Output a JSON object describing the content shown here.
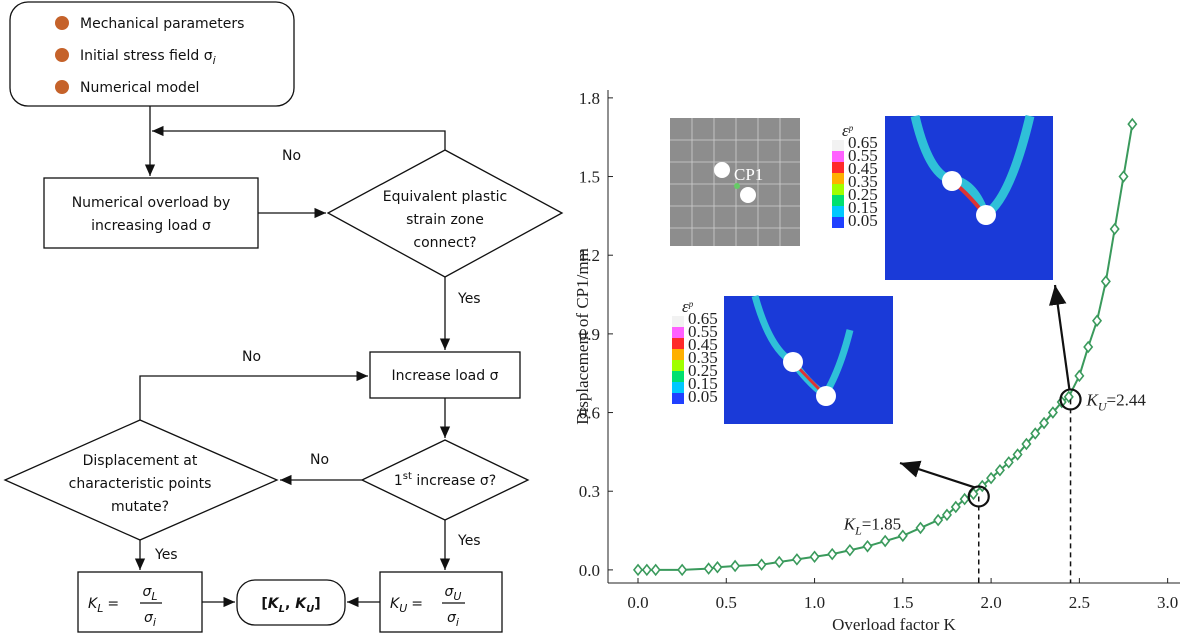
{
  "flowchart": {
    "inputs": [
      "Mechanical parameters",
      "Initial stress field σ",
      "Numerical model"
    ],
    "input_sub": "i",
    "overload": [
      "Numerical overload by",
      "increasing load σ"
    ],
    "connect": [
      "Equivalent plastic",
      "strain zone",
      "connect?"
    ],
    "increase": "Increase load σ",
    "first": {
      "pre": "1",
      "sup": "st",
      "post": " increase σ?"
    },
    "mutate": [
      "Displacement at",
      "characteristic points",
      "mutate?"
    ],
    "no_1": "No",
    "yes_1": "Yes",
    "no_2": "No",
    "no_3": "No",
    "yes_2": "Yes",
    "yes_3": "Yes",
    "kl": {
      "lhs": "K",
      "lhs_sub": "L",
      "eq": "=",
      "num": "σ",
      "num_sub": "L",
      "den": "σ",
      "den_sub": "i"
    },
    "ku": {
      "lhs": "K",
      "lhs_sub": "U",
      "eq": "=",
      "num": "σ",
      "num_sub": "U",
      "den": "σ",
      "den_sub": "i"
    },
    "result": {
      "open": "[",
      "k1": "K",
      "k1_sub": "L",
      "sep": ", ",
      "k2": "K",
      "k2_sub": "U",
      "close": "]"
    }
  },
  "chart_data": {
    "type": "line",
    "x_label": "Overload factor K",
    "y_label": "Displacement of CP1/mm",
    "color": "#3a9a5c",
    "x": [
      0,
      0.05,
      0.1,
      0.25,
      0.4,
      0.45,
      0.55,
      0.7,
      0.8,
      0.9,
      1.0,
      1.1,
      1.2,
      1.3,
      1.4,
      1.5,
      1.6,
      1.7,
      1.75,
      1.8,
      1.85,
      1.9,
      1.95,
      2.0,
      2.05,
      2.1,
      2.15,
      2.2,
      2.25,
      2.3,
      2.35,
      2.4,
      2.44,
      2.5,
      2.55,
      2.6,
      2.65,
      2.7,
      2.75,
      2.8
    ],
    "values": [
      0,
      0,
      0,
      0,
      0.005,
      0.01,
      0.015,
      0.02,
      0.03,
      0.04,
      0.05,
      0.06,
      0.075,
      0.09,
      0.11,
      0.13,
      0.16,
      0.19,
      0.21,
      0.24,
      0.27,
      0.29,
      0.32,
      0.35,
      0.38,
      0.41,
      0.44,
      0.48,
      0.52,
      0.56,
      0.6,
      0.64,
      0.66,
      0.74,
      0.85,
      0.95,
      1.1,
      1.3,
      1.5,
      1.7
    ],
    "xlim": [
      -0.17,
      3.07
    ],
    "ylim": [
      -0.05,
      1.83
    ],
    "xticks": [
      {
        "value": 0,
        "label": "0.0"
      },
      {
        "value": 0.5,
        "label": "0.5"
      },
      {
        "value": 1,
        "label": "1.0"
      },
      {
        "value": 1.5,
        "label": "1.5"
      },
      {
        "value": 2,
        "label": "2.0"
      },
      {
        "value": 2.5,
        "label": "2.5"
      },
      {
        "value": 3,
        "label": "3.0"
      }
    ],
    "yticks": [
      {
        "value": 0,
        "label": "0.0"
      },
      {
        "value": 0.3,
        "label": "0.3"
      },
      {
        "value": 0.6,
        "label": "0.6"
      },
      {
        "value": 0.9,
        "label": "0.9"
      },
      {
        "value": 1.2,
        "label": "1.2"
      },
      {
        "value": 1.5,
        "label": "1.5"
      },
      {
        "value": 1.8,
        "label": "1.8"
      }
    ],
    "markers": [
      {
        "k": "K",
        "sub": "L",
        "text": "=1.85",
        "x": 1.93,
        "y": 0.28
      },
      {
        "k": "K",
        "sub": "U",
        "text": "=2.44",
        "x": 2.45,
        "y": 0.65
      }
    ],
    "insets": {
      "cp": "CP1",
      "symbol": "ε",
      "sup": "p",
      "legend": [
        "0.65",
        "0.55",
        "0.45",
        "0.35",
        "0.25",
        "0.15",
        "0.05"
      ]
    }
  }
}
